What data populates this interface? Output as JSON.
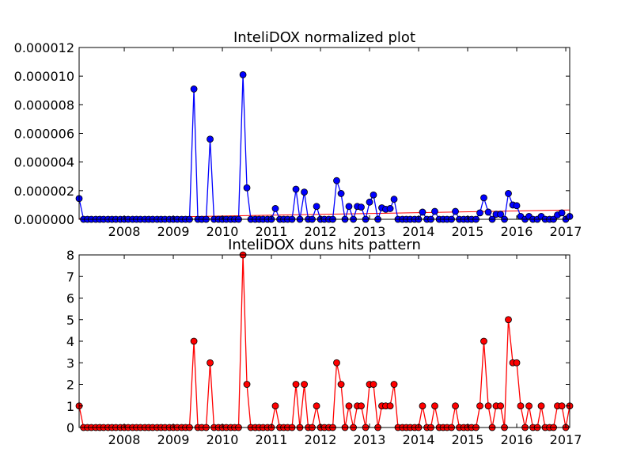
{
  "chart_data": [
    {
      "type": "line",
      "title": "InteliDOX normalized plot",
      "xlabel": "",
      "ylabel": "",
      "x_ticks": [
        "2008",
        "2009",
        "2010",
        "2011",
        "2012",
        "2013",
        "2014",
        "2015",
        "2016",
        "2017"
      ],
      "y_ticks": [
        "0.000000",
        "0.000002",
        "0.000004",
        "0.000006",
        "0.000008",
        "0.000010",
        "0.000012"
      ],
      "xlim": [
        2007.08,
        2017.08
      ],
      "ylim": [
        0,
        1.2e-05
      ],
      "grid": false,
      "colors": {
        "series": "#0000ff",
        "trend": "#ff0000"
      },
      "series": [
        {
          "x": [
            2007.08,
            2007.17,
            2007.25,
            2007.33,
            2007.42,
            2007.5,
            2007.58,
            2007.67,
            2007.75,
            2007.83,
            2007.92,
            2008.0,
            2008.08,
            2008.17,
            2008.25,
            2008.33,
            2008.42,
            2008.5,
            2008.58,
            2008.67,
            2008.75,
            2008.83,
            2008.92,
            2009.0,
            2009.08,
            2009.17,
            2009.25,
            2009.33,
            2009.42,
            2009.5,
            2009.58,
            2009.67,
            2009.75,
            2009.83,
            2009.92,
            2010.0,
            2010.08,
            2010.17,
            2010.25,
            2010.33,
            2010.42,
            2010.5,
            2010.58,
            2010.67,
            2010.75,
            2010.83,
            2010.92,
            2011.0,
            2011.08,
            2011.17,
            2011.25,
            2011.33,
            2011.42,
            2011.5,
            2011.58,
            2011.67,
            2011.75,
            2011.83,
            2011.92,
            2012.0,
            2012.08,
            2012.17,
            2012.25,
            2012.33,
            2012.42,
            2012.5,
            2012.58,
            2012.67,
            2012.75,
            2012.83,
            2012.92,
            2013.0,
            2013.08,
            2013.17,
            2013.25,
            2013.33,
            2013.42,
            2013.5,
            2013.58,
            2013.67,
            2013.75,
            2013.83,
            2013.92,
            2014.0,
            2014.08,
            2014.17,
            2014.25,
            2014.33,
            2014.42,
            2014.5,
            2014.58,
            2014.67,
            2014.75,
            2014.83,
            2014.92,
            2015.0,
            2015.08,
            2015.17,
            2015.25,
            2015.33,
            2015.42,
            2015.5,
            2015.58,
            2015.67,
            2015.75,
            2015.83,
            2015.92,
            2016.0,
            2016.08,
            2016.17,
            2016.25,
            2016.33,
            2016.42,
            2016.5,
            2016.58,
            2016.67,
            2016.75,
            2016.83,
            2016.92,
            2017.0,
            2017.08
          ],
          "y": [
            1.45e-06,
            0,
            0,
            0,
            0,
            0,
            0,
            0,
            0,
            0,
            0,
            0,
            0,
            0,
            0,
            0,
            0,
            0,
            0,
            0,
            0,
            0,
            0,
            0,
            0,
            0,
            0,
            0,
            9.1e-06,
            0,
            0,
            0,
            5.6e-06,
            0,
            0,
            0,
            0,
            0,
            0,
            0,
            1.01e-05,
            2.2e-06,
            0,
            0,
            0,
            0,
            0,
            0,
            7.5e-07,
            0,
            0,
            0,
            0,
            2.1e-06,
            0,
            1.9e-06,
            0,
            0,
            9e-07,
            0,
            0,
            0,
            0,
            2.7e-06,
            1.8e-06,
            0,
            9e-07,
            0,
            9e-07,
            8.5e-07,
            0,
            1.2e-06,
            1.7e-06,
            0,
            8e-07,
            7e-07,
            7.5e-07,
            1.4e-06,
            0,
            0,
            0,
            0,
            0,
            0,
            5e-07,
            0,
            0,
            5.5e-07,
            0,
            0,
            0,
            0,
            5.5e-07,
            0,
            0,
            0,
            0,
            0,
            4.5e-07,
            1.5e-06,
            5e-07,
            0,
            3.5e-07,
            3.5e-07,
            0,
            1.8e-06,
            1e-06,
            9.5e-07,
            2e-07,
            0,
            2e-07,
            0,
            0,
            2e-07,
            0,
            0,
            0,
            3e-07,
            4.5e-07,
            0,
            2e-07
          ]
        },
        {
          "name": "trend",
          "type": "line",
          "x": [
            2007.08,
            2017.08
          ],
          "y": [
            5e-08,
            6.5e-07
          ]
        }
      ]
    },
    {
      "type": "line",
      "title": "InteliDOX duns hits pattern",
      "xlabel": "",
      "ylabel": "",
      "x_ticks": [
        "2008",
        "2009",
        "2010",
        "2011",
        "2012",
        "2013",
        "2014",
        "2015",
        "2016",
        "2017"
      ],
      "y_ticks": [
        "0",
        "1",
        "2",
        "3",
        "4",
        "5",
        "6",
        "7",
        "8"
      ],
      "xlim": [
        2007.08,
        2017.08
      ],
      "ylim": [
        0,
        8
      ],
      "grid": false,
      "colors": {
        "series": "#ff0000"
      },
      "series": [
        {
          "x": [
            2007.08,
            2007.17,
            2007.25,
            2007.33,
            2007.42,
            2007.5,
            2007.58,
            2007.67,
            2007.75,
            2007.83,
            2007.92,
            2008.0,
            2008.08,
            2008.17,
            2008.25,
            2008.33,
            2008.42,
            2008.5,
            2008.58,
            2008.67,
            2008.75,
            2008.83,
            2008.92,
            2009.0,
            2009.08,
            2009.17,
            2009.25,
            2009.33,
            2009.42,
            2009.5,
            2009.58,
            2009.67,
            2009.75,
            2009.83,
            2009.92,
            2010.0,
            2010.08,
            2010.17,
            2010.25,
            2010.33,
            2010.42,
            2010.5,
            2010.58,
            2010.67,
            2010.75,
            2010.83,
            2010.92,
            2011.0,
            2011.08,
            2011.17,
            2011.25,
            2011.33,
            2011.42,
            2011.5,
            2011.58,
            2011.67,
            2011.75,
            2011.83,
            2011.92,
            2012.0,
            2012.08,
            2012.17,
            2012.25,
            2012.33,
            2012.42,
            2012.5,
            2012.58,
            2012.67,
            2012.75,
            2012.83,
            2012.92,
            2013.0,
            2013.08,
            2013.17,
            2013.25,
            2013.33,
            2013.42,
            2013.5,
            2013.58,
            2013.67,
            2013.75,
            2013.83,
            2013.92,
            2014.0,
            2014.08,
            2014.17,
            2014.25,
            2014.33,
            2014.42,
            2014.5,
            2014.58,
            2014.67,
            2014.75,
            2014.83,
            2014.92,
            2015.0,
            2015.08,
            2015.17,
            2015.25,
            2015.33,
            2015.42,
            2015.5,
            2015.58,
            2015.67,
            2015.75,
            2015.83,
            2015.92,
            2016.0,
            2016.08,
            2016.17,
            2016.25,
            2016.33,
            2016.42,
            2016.5,
            2016.58,
            2016.67,
            2016.75,
            2016.83,
            2016.92,
            2017.0,
            2017.08
          ],
          "y": [
            1,
            0,
            0,
            0,
            0,
            0,
            0,
            0,
            0,
            0,
            0,
            0,
            0,
            0,
            0,
            0,
            0,
            0,
            0,
            0,
            0,
            0,
            0,
            0,
            0,
            0,
            0,
            0,
            4,
            0,
            0,
            0,
            3,
            0,
            0,
            0,
            0,
            0,
            0,
            0,
            8,
            2,
            0,
            0,
            0,
            0,
            0,
            0,
            1,
            0,
            0,
            0,
            0,
            2,
            0,
            2,
            0,
            0,
            1,
            0,
            0,
            0,
            0,
            3,
            2,
            0,
            1,
            0,
            1,
            1,
            0,
            2,
            2,
            0,
            1,
            1,
            1,
            2,
            0,
            0,
            0,
            0,
            0,
            0,
            1,
            0,
            0,
            1,
            0,
            0,
            0,
            0,
            1,
            0,
            0,
            0,
            0,
            0,
            1,
            4,
            1,
            0,
            1,
            1,
            0,
            5,
            3,
            3,
            1,
            0,
            1,
            0,
            0,
            1,
            0,
            0,
            0,
            1,
            1,
            0,
            1
          ]
        }
      ]
    }
  ]
}
